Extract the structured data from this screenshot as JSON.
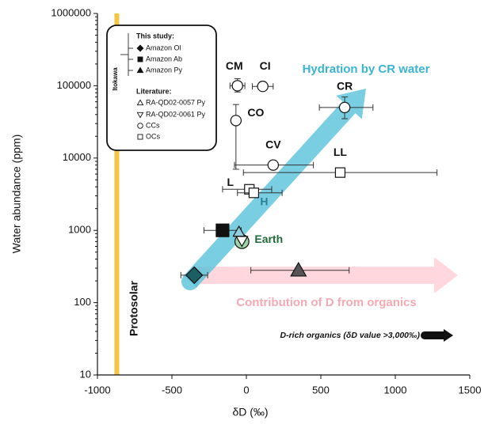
{
  "chart_data": {
    "type": "scatter",
    "xlabel": "δD (‰)",
    "ylabel": "Water abundance  (ppm)",
    "xlim": [
      -1000,
      1500
    ],
    "ylim": [
      10,
      1000000
    ],
    "yscale": "log",
    "xticks": [
      -1000,
      -500,
      0,
      500,
      1000,
      1500
    ],
    "yticks": [
      10,
      100,
      1000,
      10000,
      100000,
      1000000
    ],
    "legend_sections": [
      "This study:",
      "Literature:"
    ],
    "legend_bracket": "Itokawa",
    "protosolar": {
      "label": "Protosolar",
      "x": -870,
      "color": "#f4c542"
    },
    "annotations": [
      "Hydration by CR water",
      "Contribution of D from organics",
      "D-rich organics (δD value >3,000‰)"
    ],
    "series": [
      {
        "name": "Amazon Ol",
        "marker": "diamond",
        "color": "#1d5e63",
        "section": 0,
        "legend": true,
        "x": [
          -350
        ],
        "values": [
          240
        ],
        "x_low": [
          -440
        ],
        "x_high": [
          -260
        ]
      },
      {
        "name": "Amazon Ab",
        "marker": "square",
        "color": "#111111",
        "section": 0,
        "legend": true,
        "x": [
          -160
        ],
        "values": [
          1000
        ],
        "x_low": [
          -285
        ],
        "x_high": [
          -35
        ]
      },
      {
        "name": "Amazon Py",
        "marker": "triangle",
        "color": "#555555",
        "section": 0,
        "legend": true,
        "x": [
          350
        ],
        "values": [
          280
        ],
        "x_low": [
          30
        ],
        "x_high": [
          690
        ]
      },
      {
        "marker": "circle",
        "color": "#9fd4a8",
        "legend": false,
        "x": [
          -30
        ],
        "values": [
          700
        ],
        "point_labels": [
          "Earth"
        ]
      },
      {
        "name": "RA-QD02-0057 Py",
        "marker": "triangle",
        "color": "#8fd0dc",
        "section": 1,
        "legend": true,
        "x": [
          -50
        ],
        "values": [
          950
        ]
      },
      {
        "name": "RA-QD02-0061 Py",
        "marker": "triangle-down",
        "color": "#ffffff",
        "section": 1,
        "legend": true,
        "x": [
          -30
        ],
        "values": [
          720
        ]
      },
      {
        "name": "CCs",
        "marker": "circle",
        "color": "#ffffff",
        "section": 1,
        "legend": true,
        "x": [
          -60,
          110,
          -70,
          180,
          660
        ],
        "values": [
          100000,
          98000,
          33000,
          8000,
          50000
        ],
        "x_low": [
          -110,
          40,
          null,
          -80,
          490
        ],
        "x_high": [
          -10,
          180,
          null,
          450,
          850
        ],
        "y_low": [
          82000,
          null,
          7000,
          null,
          35000
        ],
        "y_high": [
          125000,
          null,
          55000,
          null,
          70000
        ],
        "point_labels": [
          "CM",
          "CI",
          "CO",
          "CV",
          "CR"
        ]
      },
      {
        "name": "OCs",
        "marker": "square",
        "color": "#ffffff",
        "section": 1,
        "legend": true,
        "x": [
          630,
          20,
          50
        ],
        "values": [
          6300,
          3700,
          3300
        ],
        "x_low": [
          -20,
          -160,
          -60
        ],
        "x_high": [
          1280,
          170,
          240
        ],
        "point_labels": [
          "LL",
          "L",
          "H"
        ]
      }
    ]
  }
}
